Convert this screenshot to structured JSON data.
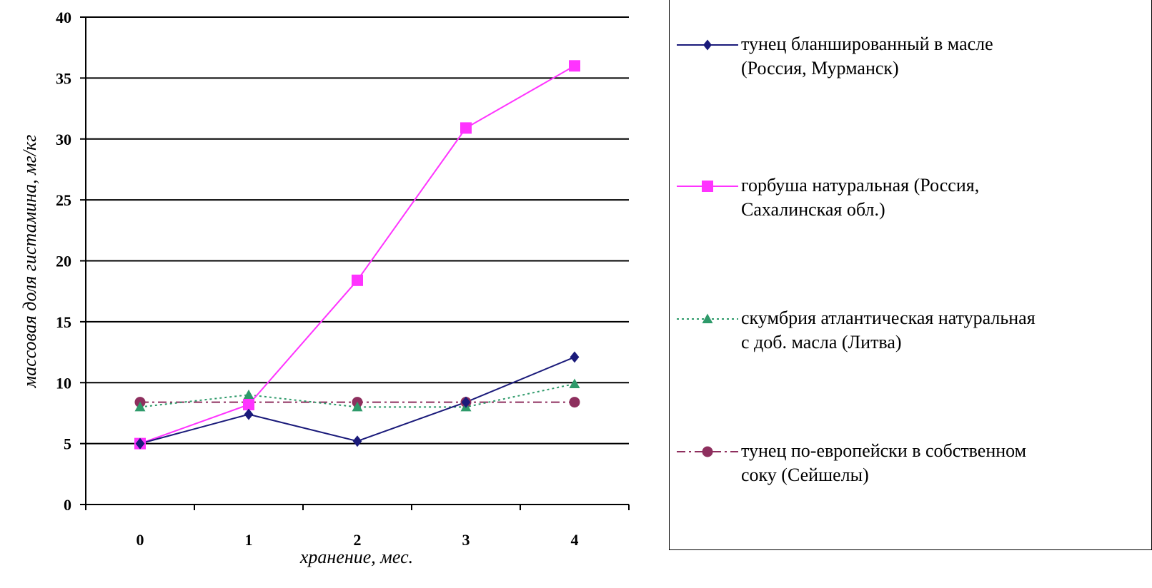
{
  "chart_data": {
    "type": "line",
    "title": "",
    "xlabel": "хранение, мес.",
    "ylabel": "массовая доля гистамина, мг/кг",
    "categories": [
      "0",
      "1",
      "2",
      "3",
      "4"
    ],
    "ylim": [
      0,
      40
    ],
    "yticks": [
      "0",
      "5",
      "10",
      "15",
      "20",
      "25",
      "30",
      "35",
      "40"
    ],
    "grid": true,
    "legend_position": "right",
    "series": [
      {
        "name": "тунец бланшированный в масле (Россия, Мурманск)",
        "label_lines": [
          "тунец бланшированный в масле",
          "(Россия, Мурманск)"
        ],
        "values": [
          5.0,
          7.4,
          5.2,
          8.4,
          12.1
        ],
        "color": "#1a1a7a",
        "marker": "diamond",
        "dash": "solid"
      },
      {
        "name": "горбуша натуральная (Россия, Сахалинская обл.)",
        "label_lines": [
          "горбуша натуральная (Россия,",
          "Сахалинская обл.)"
        ],
        "values": [
          5.0,
          8.2,
          18.4,
          30.9,
          36.0
        ],
        "color": "#ff33ff",
        "marker": "square",
        "dash": "solid"
      },
      {
        "name": "скумбрия атлантическая натуральная с доб. масла (Литва)",
        "label_lines": [
          "скумбрия атлантическая натуральная",
          "с доб. масла (Литва)"
        ],
        "values": [
          8.0,
          9.0,
          8.0,
          8.0,
          9.9
        ],
        "color": "#2e9a6a",
        "marker": "triangle",
        "dash": "dotted"
      },
      {
        "name": "тунец по-европейски в собственном соку (Сейшелы)",
        "label_lines": [
          "тунец по-европейски в собственном",
          "соку (Сейшелы)"
        ],
        "values": [
          8.4,
          8.4,
          8.4,
          8.4,
          8.4
        ],
        "color": "#8e2f5e",
        "marker": "circle",
        "dash": "dashdot"
      }
    ]
  }
}
